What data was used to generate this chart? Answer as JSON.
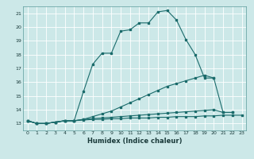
{
  "bg_color": "#cce8e8",
  "grid_color": "#ffffff",
  "line_color": "#1a6b6b",
  "xlabel": "Humidex (Indice chaleur)",
  "ylim": [
    12.5,
    21.5
  ],
  "xlim": [
    -0.5,
    23.5
  ],
  "yticks": [
    13,
    14,
    15,
    16,
    17,
    18,
    19,
    20,
    21
  ],
  "xticks": [
    0,
    1,
    2,
    3,
    4,
    5,
    6,
    7,
    8,
    9,
    10,
    11,
    12,
    13,
    14,
    15,
    16,
    17,
    18,
    19,
    20,
    21,
    22,
    23
  ],
  "series1_x": [
    0,
    1,
    2,
    3,
    4,
    5,
    6,
    7,
    8,
    9,
    10,
    11,
    12,
    13,
    14,
    15,
    16,
    17,
    18,
    19,
    20
  ],
  "series1_y": [
    13.2,
    13.0,
    13.0,
    13.1,
    13.2,
    13.2,
    15.3,
    17.3,
    18.1,
    18.1,
    19.7,
    19.8,
    20.3,
    20.3,
    21.1,
    21.2,
    20.5,
    19.1,
    18.0,
    16.3,
    16.3
  ],
  "series2_x": [
    0,
    1,
    2,
    3,
    4,
    5,
    6,
    7,
    8,
    9,
    10,
    11,
    12,
    13,
    14,
    15,
    16,
    17,
    18,
    19,
    20,
    21,
    22
  ],
  "series2_y": [
    13.2,
    13.0,
    13.0,
    13.1,
    13.2,
    13.2,
    13.3,
    13.35,
    13.4,
    13.45,
    13.5,
    13.55,
    13.6,
    13.65,
    13.7,
    13.75,
    13.8,
    13.85,
    13.9,
    13.95,
    14.0,
    13.8,
    13.8
  ],
  "series3_x": [
    0,
    1,
    2,
    3,
    4,
    5,
    6,
    7,
    8,
    9,
    10,
    11,
    12,
    13,
    14,
    15,
    16,
    17,
    18,
    19,
    20,
    21,
    22
  ],
  "series3_y": [
    13.2,
    13.0,
    13.0,
    13.1,
    13.2,
    13.2,
    13.3,
    13.5,
    13.7,
    13.9,
    14.2,
    14.5,
    14.8,
    15.1,
    15.4,
    15.7,
    15.9,
    16.1,
    16.3,
    16.5,
    16.3,
    13.8,
    13.8
  ],
  "series4_x": [
    0,
    1,
    2,
    3,
    4,
    5,
    6,
    7,
    8,
    9,
    10,
    11,
    12,
    13,
    14,
    15,
    16,
    17,
    18,
    19,
    20,
    21,
    22,
    23
  ],
  "series4_y": [
    13.2,
    13.0,
    13.0,
    13.1,
    13.2,
    13.2,
    13.25,
    13.3,
    13.3,
    13.35,
    13.35,
    13.4,
    13.4,
    13.4,
    13.45,
    13.45,
    13.5,
    13.5,
    13.5,
    13.55,
    13.55,
    13.6,
    13.6,
    13.6
  ]
}
